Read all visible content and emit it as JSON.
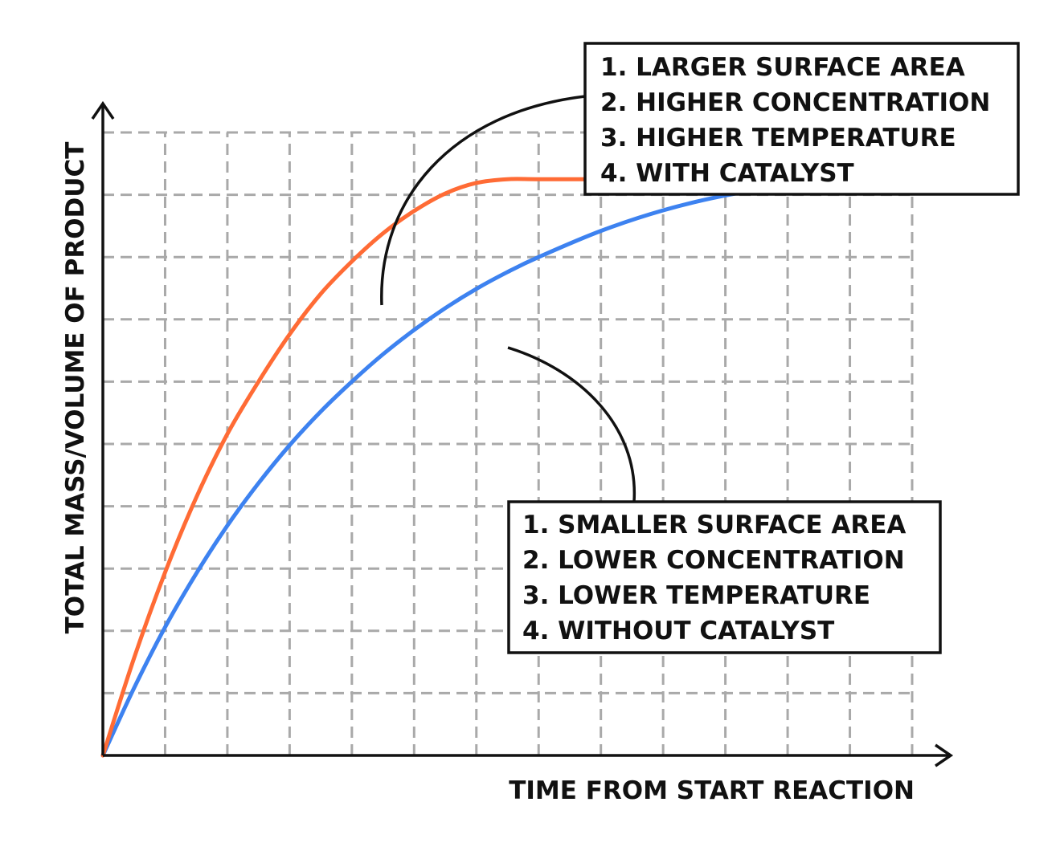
{
  "colors": {
    "fast_curve": "#ff6b35",
    "slow_curve": "#3d82f0",
    "grid": "#a9a9a9",
    "axis": "#111111"
  },
  "chart_data": {
    "type": "line",
    "title": "",
    "xlabel": "TIME FROM START REACTION",
    "ylabel": "TOTAL MASS/VOLUME OF PRODUCT",
    "x_ticks_labeled": false,
    "y_ticks_labeled": false,
    "grid": true,
    "xlim": [
      0,
      13
    ],
    "ylim": [
      0,
      10
    ],
    "series": [
      {
        "x": [
          0,
          0.5,
          1,
          1.5,
          2,
          2.5,
          3,
          3.5,
          4,
          4.5,
          5,
          5.5,
          6,
          6.5,
          7,
          8,
          9,
          10,
          11,
          12,
          13
        ],
        "y": [
          0,
          1.56,
          2.94,
          4.14,
          5.16,
          6.0,
          6.76,
          7.41,
          7.93,
          8.38,
          8.74,
          9.02,
          9.19,
          9.25,
          9.25,
          9.25,
          9.25,
          9.25,
          9.25,
          9.25,
          9.25
        ],
        "annotation": [
          "1. LARGER SURFACE AREA",
          "2. HIGHER CONCENTRATION",
          "3. HIGHER TEMPERATURE",
          "4. WITH CATALYST"
        ]
      },
      {
        "x": [
          0,
          0.5,
          1,
          1.5,
          2,
          2.5,
          3,
          3.5,
          4,
          4.5,
          5,
          5.5,
          6,
          6.5,
          7,
          8,
          9,
          10,
          11,
          12,
          13
        ],
        "y": [
          0,
          1.08,
          2.06,
          2.92,
          3.69,
          4.37,
          4.98,
          5.52,
          6.0,
          6.44,
          6.83,
          7.18,
          7.49,
          7.76,
          8.0,
          8.42,
          8.75,
          8.99,
          9.14,
          9.22,
          9.25
        ],
        "annotation": [
          "1. SMALLER SURFACE AREA",
          "2. LOWER CONCENTRATION",
          "3. LOWER TEMPERATURE",
          "4. WITHOUT CATALYST"
        ]
      }
    ]
  }
}
